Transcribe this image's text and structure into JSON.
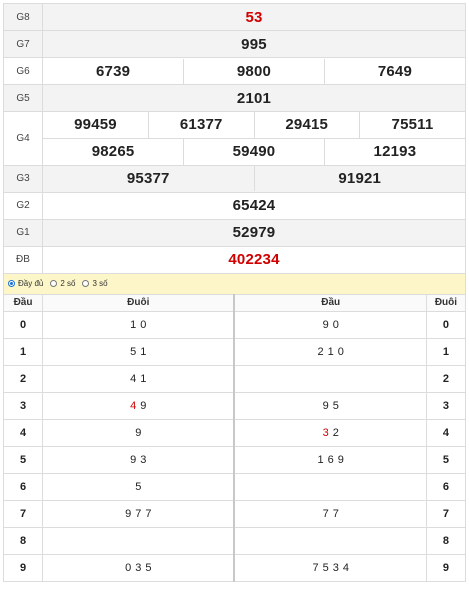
{
  "prizes": [
    {
      "label": "G8",
      "numbers": [
        "53"
      ],
      "red": true
    },
    {
      "label": "G7",
      "numbers": [
        "995"
      ]
    },
    {
      "label": "G6",
      "numbers": [
        "6739",
        "9800",
        "7649"
      ]
    },
    {
      "label": "G5",
      "numbers": [
        "2101"
      ]
    },
    {
      "label": "G4",
      "numbers": [
        "99459",
        "61377",
        "29415",
        "75511",
        "98265",
        "59490",
        "12193"
      ]
    },
    {
      "label": "G3",
      "numbers": [
        "95377",
        "91921"
      ]
    },
    {
      "label": "G2",
      "numbers": [
        "65424"
      ]
    },
    {
      "label": "G1",
      "numbers": [
        "52979"
      ]
    },
    {
      "label": "ĐB",
      "numbers": [
        "402234"
      ],
      "red": true
    }
  ],
  "options": {
    "full": "Đầy đủ",
    "two": "2 số",
    "three": "3 số",
    "selected": "full"
  },
  "loto": {
    "headers": {
      "dau": "Đầu",
      "duoi": "Đuôi",
      "dau2": "Đầu",
      "duoi2": "Đuôi"
    },
    "rows": [
      {
        "head": "0",
        "tails": [
          {
            "d": "1"
          },
          {
            "d": "0"
          }
        ],
        "heads": [
          {
            "d": "9"
          },
          {
            "d": "0"
          }
        ],
        "tail": "0"
      },
      {
        "head": "1",
        "tails": [
          {
            "d": "5"
          },
          {
            "d": "1"
          }
        ],
        "heads": [
          {
            "d": "2"
          },
          {
            "d": "1"
          },
          {
            "d": "0"
          }
        ],
        "tail": "1"
      },
      {
        "head": "2",
        "tails": [
          {
            "d": "4"
          },
          {
            "d": "1"
          }
        ],
        "heads": [],
        "tail": "2"
      },
      {
        "head": "3",
        "tails": [
          {
            "d": "4",
            "red": true
          },
          {
            "d": "9"
          }
        ],
        "heads": [
          {
            "d": "9"
          },
          {
            "d": "5"
          }
        ],
        "tail": "3"
      },
      {
        "head": "4",
        "tails": [
          {
            "d": "9"
          }
        ],
        "heads": [
          {
            "d": "3",
            "red": true
          },
          {
            "d": "2"
          }
        ],
        "tail": "4"
      },
      {
        "head": "5",
        "tails": [
          {
            "d": "9"
          },
          {
            "d": "3"
          }
        ],
        "heads": [
          {
            "d": "1"
          },
          {
            "d": "6"
          },
          {
            "d": "9"
          }
        ],
        "tail": "5"
      },
      {
        "head": "6",
        "tails": [
          {
            "d": "5"
          }
        ],
        "heads": [],
        "tail": "6"
      },
      {
        "head": "7",
        "tails": [
          {
            "d": "9"
          },
          {
            "d": "7"
          },
          {
            "d": "7"
          }
        ],
        "heads": [
          {
            "d": "7"
          },
          {
            "d": "7"
          }
        ],
        "tail": "7"
      },
      {
        "head": "8",
        "tails": [],
        "heads": [],
        "tail": "8"
      },
      {
        "head": "9",
        "tails": [
          {
            "d": "0"
          },
          {
            "d": "3"
          },
          {
            "d": "5"
          }
        ],
        "heads": [
          {
            "d": "7"
          },
          {
            "d": "5"
          },
          {
            "d": "3"
          },
          {
            "d": "4"
          }
        ],
        "tail": "9"
      }
    ]
  },
  "colors": {
    "red": "#d00000",
    "options_bg": "#fdf6c8",
    "row_alt": "#f3f3f3"
  }
}
